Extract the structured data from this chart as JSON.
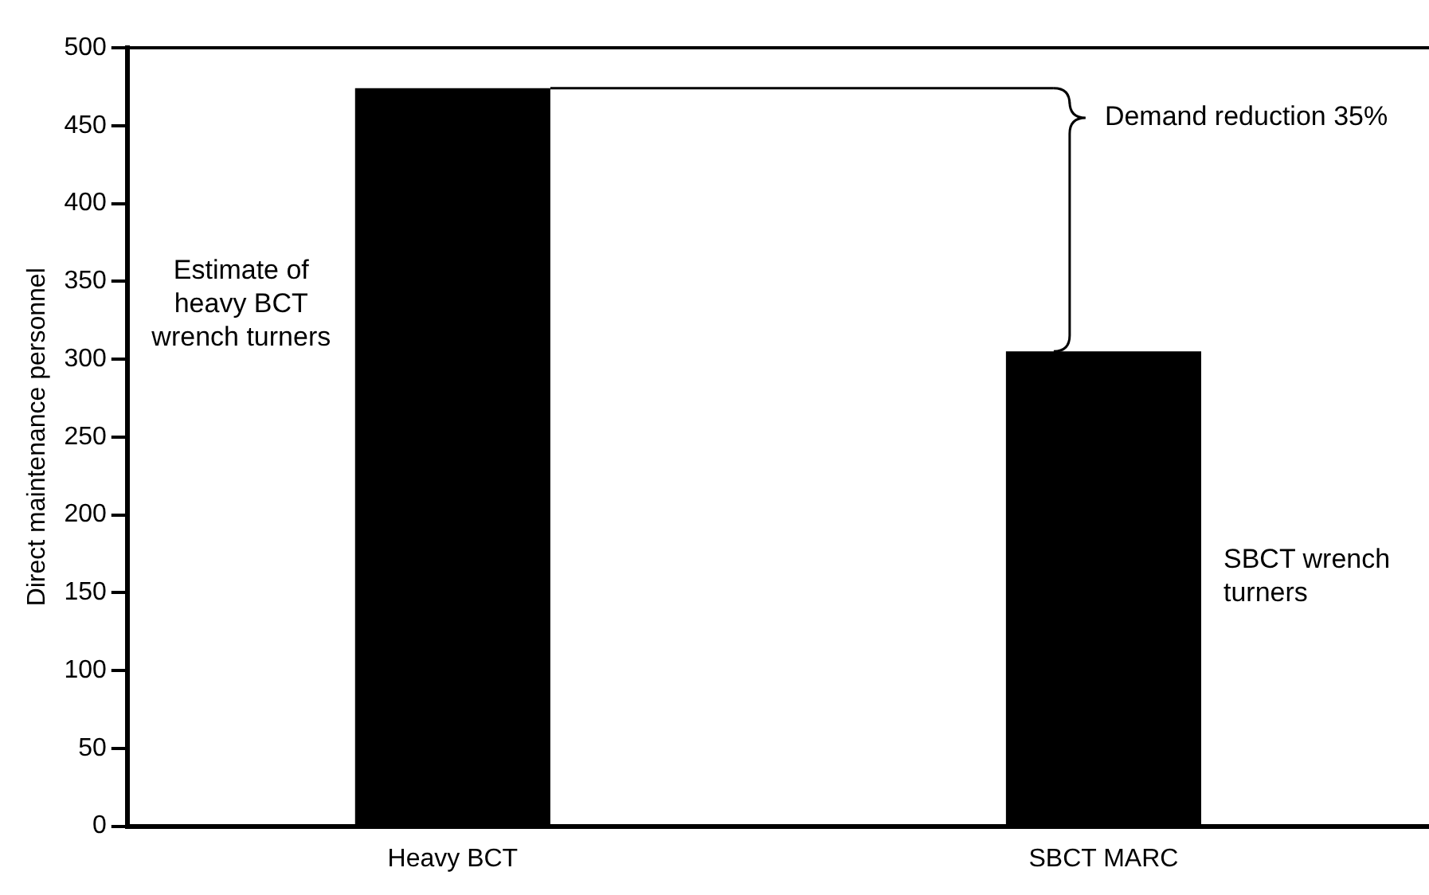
{
  "chart_data": {
    "type": "bar",
    "ylabel": "Direct maintenance personnel",
    "categories": [
      "Heavy BCT",
      "SBCT MARC"
    ],
    "values": [
      474,
      305
    ],
    "color": "#000000",
    "ylim": [
      0,
      500
    ],
    "yticks": [
      0,
      50,
      100,
      150,
      200,
      250,
      300,
      350,
      400,
      450,
      500
    ],
    "grid": false,
    "legend": false,
    "ref_lines": [
      {
        "axis": "y",
        "value": 474,
        "color": "#000000"
      }
    ],
    "annotations": [
      "Estimate of heavy BCT wrench turners",
      "SBCT wrench turners",
      "Demand reduction 35%"
    ]
  }
}
